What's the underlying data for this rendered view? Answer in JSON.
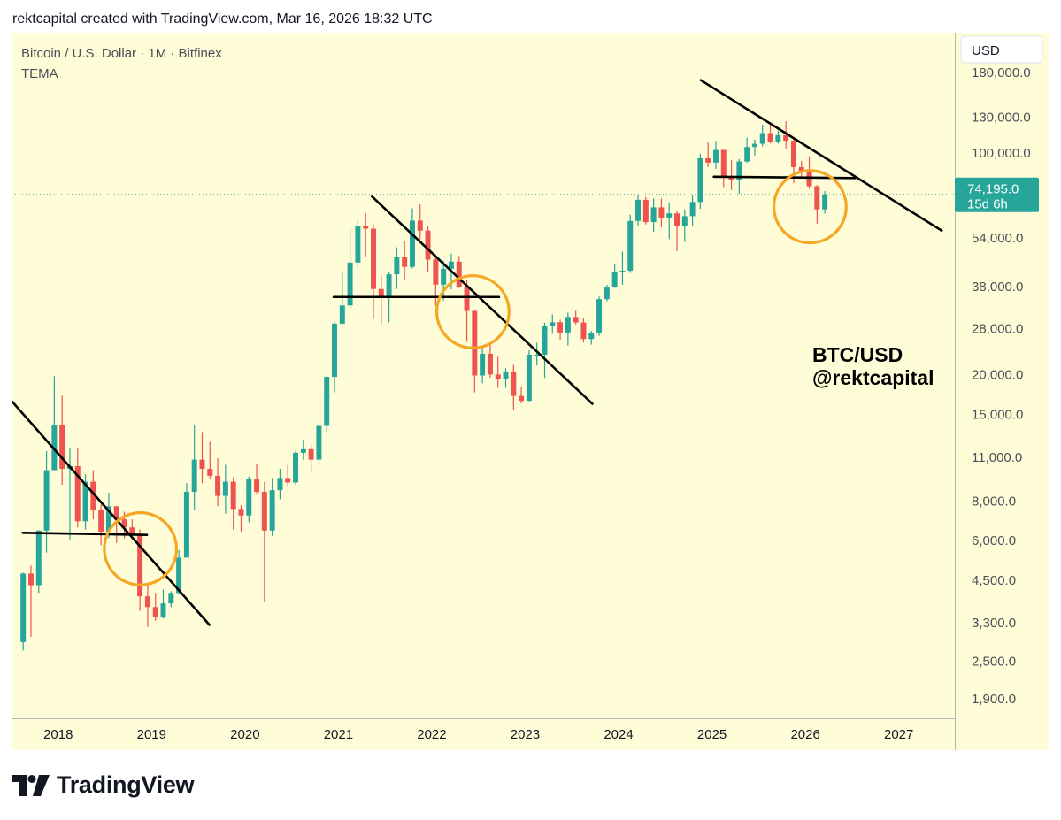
{
  "header": {
    "credit": "rektcapital created with TradingView.com, Mar 16, 2026 18:32 UTC"
  },
  "footer": {
    "brand": "TradingView",
    "brand_icon": "tradingview-logo-icon"
  },
  "colors": {
    "background": "#fffdd7",
    "up": "#26a69a",
    "down": "#ef5350",
    "circle": "#f5a623",
    "price_label": "#26a69a",
    "line": "#000000"
  },
  "chart_data": {
    "type": "candlestick",
    "symbol_line": "Bitcoin / U.S. Dollar · 1M · Bitfinex",
    "indicator": "TEMA",
    "currency": "USD",
    "watermark_line1": "BTC/USD",
    "watermark_line2": "@rektcapital",
    "y_scale": "log",
    "ylim": [
      1650,
      240000
    ],
    "xlim": [
      2017.5,
      2027.6
    ],
    "x_ticks": [
      "2018",
      "2019",
      "2020",
      "2021",
      "2022",
      "2023",
      "2024",
      "2025",
      "2026",
      "2027"
    ],
    "y_ticks": [
      "180,000.0",
      "130,000.0",
      "100,000.0",
      "54,000.0",
      "38,000.0",
      "28,000.0",
      "20,000.0",
      "15,000.0",
      "11,000.0",
      "8,000.0",
      "6,000.0",
      "4,500.0",
      "3,300.0",
      "2,500.0",
      "1,900.0"
    ],
    "last_price": {
      "value": 74195,
      "label": "74,195.0",
      "countdown": "15d 6h"
    },
    "candles": [
      [
        "2017-08",
        2870,
        4750,
        2700,
        4720
      ],
      [
        "2017-09",
        4720,
        5000,
        2980,
        4340
      ],
      [
        "2017-10",
        4340,
        6470,
        4100,
        6450
      ],
      [
        "2017-11",
        6450,
        11500,
        5500,
        10000
      ],
      [
        "2017-12",
        10000,
        19800,
        10800,
        13900
      ],
      [
        "2018-01",
        13900,
        17200,
        9000,
        10100
      ],
      [
        "2018-02",
        10100,
        11800,
        6000,
        10300
      ],
      [
        "2018-03",
        10300,
        11700,
        6600,
        6900
      ],
      [
        "2018-04",
        6900,
        9700,
        6500,
        9200
      ],
      [
        "2018-05",
        9200,
        10000,
        7000,
        7500
      ],
      [
        "2018-06",
        7500,
        7800,
        5800,
        6400
      ],
      [
        "2018-07",
        6400,
        8500,
        6100,
        7700
      ],
      [
        "2018-08",
        7700,
        7700,
        5900,
        7000
      ],
      [
        "2018-09",
        7000,
        7400,
        6100,
        6600
      ],
      [
        "2018-10",
        6600,
        7000,
        6200,
        6300
      ],
      [
        "2018-11",
        6300,
        6500,
        3600,
        4000
      ],
      [
        "2018-12",
        4000,
        4300,
        3200,
        3700
      ],
      [
        "2019-01",
        3700,
        4100,
        3350,
        3450
      ],
      [
        "2019-02",
        3450,
        4200,
        3400,
        3800
      ],
      [
        "2019-03",
        3800,
        4150,
        3700,
        4100
      ],
      [
        "2019-04",
        4100,
        5600,
        4050,
        5300
      ],
      [
        "2019-05",
        5300,
        9100,
        5300,
        8550
      ],
      [
        "2019-06",
        8550,
        13900,
        7500,
        10800
      ],
      [
        "2019-07",
        10800,
        13200,
        9100,
        10100
      ],
      [
        "2019-08",
        10100,
        12300,
        9400,
        9600
      ],
      [
        "2019-09",
        9600,
        10900,
        7700,
        8300
      ],
      [
        "2019-10",
        8300,
        10400,
        7300,
        9200
      ],
      [
        "2019-11",
        9200,
        9500,
        6500,
        7550
      ],
      [
        "2019-12",
        7550,
        7750,
        6400,
        7200
      ],
      [
        "2020-01",
        7200,
        9550,
        6850,
        9350
      ],
      [
        "2020-02",
        9350,
        10500,
        8450,
        8550
      ],
      [
        "2020-03",
        8550,
        9200,
        3850,
        6450
      ],
      [
        "2020-04",
        6450,
        9450,
        6200,
        8650
      ],
      [
        "2020-05",
        8650,
        10100,
        8100,
        9450
      ],
      [
        "2020-06",
        9450,
        10400,
        8900,
        9150
      ],
      [
        "2020-07",
        9150,
        11500,
        9000,
        11350
      ],
      [
        "2020-08",
        11350,
        12500,
        10800,
        11650
      ],
      [
        "2020-09",
        11650,
        12100,
        9850,
        10800
      ],
      [
        "2020-10",
        10800,
        14100,
        10500,
        13800
      ],
      [
        "2020-11",
        13800,
        19900,
        13200,
        19700
      ],
      [
        "2020-12",
        19700,
        29300,
        17600,
        29000
      ],
      [
        "2021-01",
        29000,
        42000,
        28800,
        33100
      ],
      [
        "2021-02",
        33100,
        58300,
        32300,
        45200
      ],
      [
        "2021-03",
        45200,
        61800,
        43000,
        58800
      ],
      [
        "2021-04",
        58800,
        64800,
        47000,
        57800
      ],
      [
        "2021-05",
        57800,
        59600,
        30000,
        37300
      ],
      [
        "2021-06",
        37300,
        41300,
        28800,
        35000
      ],
      [
        "2021-07",
        35000,
        42300,
        29300,
        41500
      ],
      [
        "2021-08",
        41500,
        50500,
        37300,
        47100
      ],
      [
        "2021-09",
        47100,
        52900,
        39600,
        43800
      ],
      [
        "2021-10",
        43800,
        67000,
        43300,
        61300
      ],
      [
        "2021-11",
        61300,
        69000,
        53300,
        57000
      ],
      [
        "2021-12",
        57000,
        59100,
        42000,
        46200
      ],
      [
        "2022-01",
        46200,
        47900,
        33000,
        38500
      ],
      [
        "2022-02",
        38500,
        45800,
        34300,
        43200
      ],
      [
        "2022-03",
        43200,
        48200,
        37200,
        45500
      ],
      [
        "2022-04",
        45500,
        47400,
        37600,
        37700
      ],
      [
        "2022-05",
        37700,
        40000,
        25400,
        31800
      ],
      [
        "2022-06",
        31800,
        31900,
        17600,
        19900
      ],
      [
        "2022-07",
        19900,
        24700,
        18800,
        23300
      ],
      [
        "2022-08",
        23300,
        25200,
        19600,
        20050
      ],
      [
        "2022-09",
        20050,
        22800,
        18200,
        19400
      ],
      [
        "2022-10",
        19400,
        21000,
        18200,
        20500
      ],
      [
        "2022-11",
        20500,
        21500,
        15500,
        17150
      ],
      [
        "2022-12",
        17150,
        18400,
        16250,
        16550
      ],
      [
        "2023-01",
        16550,
        23900,
        16500,
        23150
      ],
      [
        "2023-02",
        23150,
        25250,
        21400,
        23150
      ],
      [
        "2023-03",
        23150,
        29200,
        19550,
        28450
      ],
      [
        "2023-04",
        28450,
        31000,
        26950,
        29300
      ],
      [
        "2023-05",
        29300,
        29850,
        25800,
        27200
      ],
      [
        "2023-06",
        27200,
        31400,
        24750,
        30450
      ],
      [
        "2023-07",
        30450,
        31850,
        28850,
        29250
      ],
      [
        "2023-08",
        29250,
        30200,
        25300,
        25950
      ],
      [
        "2023-09",
        25950,
        27500,
        24900,
        27000
      ],
      [
        "2023-10",
        27000,
        35300,
        26550,
        34650
      ],
      [
        "2023-11",
        34650,
        38450,
        34100,
        37700
      ],
      [
        "2023-12",
        37700,
        44750,
        37600,
        42300
      ],
      [
        "2024-01",
        42300,
        48950,
        38500,
        42600
      ],
      [
        "2024-02",
        42600,
        64000,
        41900,
        61150
      ],
      [
        "2024-03",
        61150,
        73800,
        59150,
        71300
      ],
      [
        "2024-04",
        71300,
        72800,
        59650,
        60650
      ],
      [
        "2024-05",
        60650,
        72000,
        56550,
        67500
      ],
      [
        "2024-06",
        67500,
        72000,
        58400,
        62700
      ],
      [
        "2024-07",
        62700,
        70050,
        53550,
        64600
      ],
      [
        "2024-08",
        64600,
        65600,
        49100,
        58950
      ],
      [
        "2024-09",
        58950,
        66500,
        52500,
        63300
      ],
      [
        "2024-10",
        63300,
        73600,
        58900,
        70200
      ],
      [
        "2024-11",
        70200,
        99650,
        66800,
        96400
      ],
      [
        "2024-12",
        96400,
        108200,
        90500,
        93400
      ],
      [
        "2025-01",
        93400,
        109400,
        89200,
        102400
      ],
      [
        "2025-02",
        102400,
        102500,
        78200,
        84300
      ],
      [
        "2025-03",
        84300,
        95000,
        76600,
        82500
      ],
      [
        "2025-04",
        82500,
        95800,
        74400,
        94200
      ],
      [
        "2025-05",
        94200,
        111900,
        93400,
        104600
      ],
      [
        "2025-06",
        104600,
        110400,
        98200,
        107100
      ],
      [
        "2025-07",
        107100,
        123200,
        105100,
        115700
      ],
      [
        "2025-08",
        115700,
        124400,
        107300,
        108200
      ],
      [
        "2025-09",
        108200,
        117900,
        107300,
        114000
      ],
      [
        "2025-10",
        114000,
        126200,
        103500,
        109500
      ],
      [
        "2025-11",
        109500,
        110600,
        80500,
        90400
      ],
      [
        "2025-12",
        90400,
        94600,
        84500,
        87500
      ],
      [
        "2026-01",
        87500,
        97900,
        77300,
        78700
      ],
      [
        "2026-02",
        78700,
        79300,
        60000,
        66500
      ],
      [
        "2026-03",
        66500,
        76000,
        64500,
        74195
      ]
    ],
    "trendlines": [
      [
        [
          2017.45,
          17200
        ],
        [
          2019.62,
          3250
        ]
      ],
      [
        [
          2021.36,
          73000
        ],
        [
          2023.72,
          16200
        ]
      ],
      [
        [
          2024.88,
          170000
        ],
        [
          2027.46,
          57000
        ]
      ]
    ],
    "support_levels": [
      [
        [
          2017.62,
          6350
        ],
        [
          2018.95,
          6250
        ]
      ],
      [
        [
          2020.95,
          35200
        ],
        [
          2022.72,
          35200
        ]
      ],
      [
        [
          2025.02,
          84300
        ],
        [
          2026.53,
          83500
        ]
      ]
    ],
    "circles": [
      [
        2018.88,
        5650,
        6100
      ],
      [
        2022.44,
        31600,
        12000
      ],
      [
        2026.05,
        67800,
        14500
      ]
    ]
  }
}
